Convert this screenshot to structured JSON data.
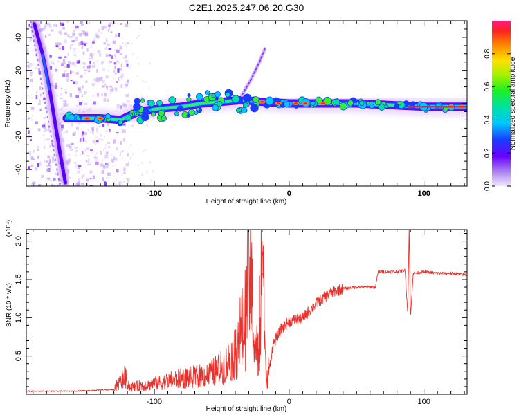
{
  "title": "C2E1.2025.247.06.20.G30",
  "chart_data": [
    {
      "type": "heatmap",
      "name": "spectrogram",
      "xlabel": "Height of straight line (km)",
      "ylabel": "Frequency (Hz)",
      "xlim": [
        -195,
        132
      ],
      "ylim": [
        -50,
        50
      ],
      "xticks": [
        -100,
        0,
        100
      ],
      "xtick_labels": [
        "-100",
        "0",
        "100"
      ],
      "yticks": [
        -40,
        -20,
        0,
        20,
        40
      ],
      "ytick_labels": [
        "-40",
        "-20",
        "0",
        "20",
        "40"
      ],
      "colorbar": {
        "label": "Normalized spectral amplitude",
        "range": [
          0,
          1
        ],
        "ticks": [
          0,
          0.2,
          0.4,
          0.6,
          0.8
        ],
        "tick_labels": [
          "0.0",
          "0.2",
          "0.4",
          "0.6",
          "0.8"
        ]
      },
      "ridges": [
        {
          "name": "main-band",
          "points": [
            [
              -165,
              -9
            ],
            [
              -140,
              -9
            ],
            [
              -125,
              -10
            ],
            [
              -112,
              -5
            ],
            [
              -95,
              -3
            ],
            [
              -80,
              -2
            ],
            [
              -65,
              0
            ],
            [
              -50,
              1
            ],
            [
              -35,
              2
            ],
            [
              -20,
              1
            ],
            [
              0,
              0
            ],
            [
              25,
              0
            ],
            [
              50,
              0
            ],
            [
              75,
              -1
            ],
            [
              100,
              -2
            ],
            [
              132,
              -2
            ]
          ]
        },
        {
          "name": "slanted-band",
          "points": [
            [
              -189,
              48
            ],
            [
              -183,
              30
            ],
            [
              -178,
              10
            ],
            [
              -174,
              -10
            ],
            [
              -170,
              -30
            ],
            [
              -166,
              -48
            ]
          ]
        },
        {
          "name": "upper-branch",
          "points": [
            [
              -35,
              5
            ],
            [
              -28,
              15
            ],
            [
              -22,
              25
            ],
            [
              -18,
              33
            ]
          ]
        }
      ]
    },
    {
      "type": "line",
      "name": "snr",
      "xlabel": "Height of straight line (km)",
      "ylabel": "SNR (10 * v/v)",
      "y_multiplier": "(x10⁴)",
      "xlim": [
        -195,
        132
      ],
      "ylim": [
        0,
        2.15
      ],
      "xticks": [
        -100,
        0,
        100
      ],
      "xtick_labels": [
        "-100",
        "0",
        "100"
      ],
      "yticks": [
        0.5,
        1.0,
        1.5,
        2.0
      ],
      "ytick_labels": [
        "0.5",
        "1.0",
        "1.5",
        "2.0"
      ],
      "series": [
        {
          "name": "SNR",
          "color": "#e8322c",
          "points": [
            [
              -195,
              0.04
            ],
            [
              -160,
              0.04
            ],
            [
              -130,
              0.06
            ],
            [
              -122,
              0.2
            ],
            [
              -118,
              0.08
            ],
            [
              -100,
              0.12
            ],
            [
              -80,
              0.18
            ],
            [
              -60,
              0.22
            ],
            [
              -48,
              0.32
            ],
            [
              -40,
              0.45
            ],
            [
              -33,
              0.6
            ],
            [
              -30,
              1.35
            ],
            [
              -26,
              0.5
            ],
            [
              -22,
              0.3
            ],
            [
              -20,
              1.55
            ],
            [
              -17,
              0.05
            ],
            [
              -12,
              0.65
            ],
            [
              -6,
              0.85
            ],
            [
              0,
              0.95
            ],
            [
              10,
              1.0
            ],
            [
              20,
              1.18
            ],
            [
              30,
              1.32
            ],
            [
              40,
              1.38
            ],
            [
              50,
              1.4
            ],
            [
              60,
              1.4
            ],
            [
              64,
              1.4
            ],
            [
              66,
              1.6
            ],
            [
              80,
              1.6
            ],
            [
              86,
              1.62
            ],
            [
              88,
              1.05
            ],
            [
              89,
              2.2
            ],
            [
              90,
              0.99
            ],
            [
              92,
              1.58
            ],
            [
              100,
              1.6
            ],
            [
              110,
              1.58
            ],
            [
              120,
              1.58
            ],
            [
              132,
              1.56
            ]
          ],
          "spikes": [
            [
              -22,
              1.55
            ],
            [
              -20,
              1.58
            ],
            [
              -28,
              1.42
            ],
            [
              89,
              2.2
            ]
          ]
        }
      ]
    }
  ]
}
